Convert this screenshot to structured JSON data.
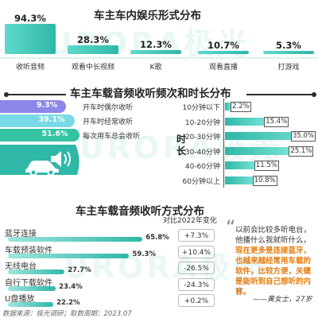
{
  "watermark": "URORA极光",
  "chart_data": [
    {
      "type": "bar",
      "title": "车主车内娱乐形式分布",
      "categories": [
        "收听音频",
        "观看中长视频",
        "K歌",
        "观看直播",
        "打游戏"
      ],
      "values": [
        94.3,
        28.3,
        12.3,
        10.7,
        5.3
      ],
      "value_labels": [
        "94.3%",
        "28.3%",
        "12.3%",
        "10.7%",
        "5.3%"
      ],
      "color": "#2fb8a7"
    },
    {
      "type": "bar",
      "title": "车主车载音频收听频次和时长分布",
      "series": [
        {
          "name": "开车时偶尔收听",
          "value": 9.3,
          "label": "9.3%",
          "color": "#8e86e8"
        },
        {
          "name": "开车时经常收听",
          "value": 39.1,
          "label": "39.1%",
          "color": "#7ad9e6"
        },
        {
          "name": "每次用车总会收听",
          "value": 51.6,
          "label": "51.6%",
          "color": "#34c3a3"
        }
      ]
    },
    {
      "type": "bar",
      "title": "时长",
      "ylabel": "时长",
      "categories": [
        "10分钟以下",
        "10-20分钟",
        "20-30分钟",
        "30-40分钟",
        "40-60分钟",
        "60分钟以上"
      ],
      "values": [
        2.2,
        15.4,
        35.0,
        25.1,
        11.5,
        10.8
      ],
      "value_labels": [
        "2.2%",
        "15.4%",
        "35.0%",
        "25.1%",
        "11.5%",
        "10.8%"
      ]
    },
    {
      "type": "bar",
      "title": "车主车载音频收听方式分布",
      "categories": [
        "蓝牙连接",
        "车载预装软件",
        "无线电台",
        "自行下载软件",
        "U盘播放"
      ],
      "values": [
        65.8,
        59.3,
        27.7,
        23.4,
        22.2
      ],
      "value_labels": [
        "65.8%",
        "59.3%",
        "27.7%",
        "23.4%",
        "22.2%"
      ],
      "change_header": "对比2022年变化",
      "changes": [
        "+7.3%",
        "+10.4%",
        "-26.5%",
        "-24.3%",
        "+0.2%"
      ]
    }
  ],
  "quote": {
    "open": "“",
    "close": "”",
    "line1": "以前会比较多听电台，",
    "line2": "他播什么我就听什么，",
    "line3": "现在更多是连接蓝牙，",
    "line4": "也越来越经常用车载的",
    "line5": "软件，比较方便，关键",
    "line6": "是能听到自己想听的内",
    "line7": "容。",
    "author": "——黄女士，27岁"
  },
  "footer": "数据来源：极光调研；取数周期：2023.07"
}
